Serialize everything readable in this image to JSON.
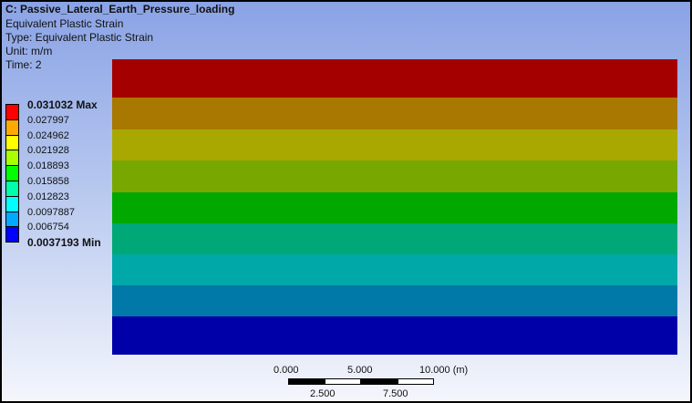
{
  "header": {
    "title": "C: Passive_Lateral_Earth_Pressure_loading",
    "result": "Equivalent Plastic Strain",
    "type": "Type: Equivalent Plastic Strain",
    "unit": "Unit: m/m",
    "time": "Time: 2"
  },
  "legend": {
    "labels": [
      "0.031032 Max",
      "0.027997",
      "0.024962",
      "0.021928",
      "0.018893",
      "0.015858",
      "0.012823",
      "0.0097887",
      "0.006754",
      "0.0037193 Min"
    ],
    "colors": [
      "#ff0000",
      "#ffaa00",
      "#ffff00",
      "#aaff00",
      "#00ff00",
      "#00ffaa",
      "#00ffff",
      "#00aaff",
      "#0000ff"
    ]
  },
  "model": {
    "band_colors": [
      "#a50000",
      "#a87800",
      "#a8a800",
      "#78a800",
      "#00a800",
      "#00a878",
      "#00a8a8",
      "#0078a8",
      "#0000a8"
    ]
  },
  "scale": {
    "top_labels": [
      "0.000",
      "5.000",
      "10.000 (m)"
    ],
    "bottom_labels": [
      "2.500",
      "7.500"
    ]
  }
}
